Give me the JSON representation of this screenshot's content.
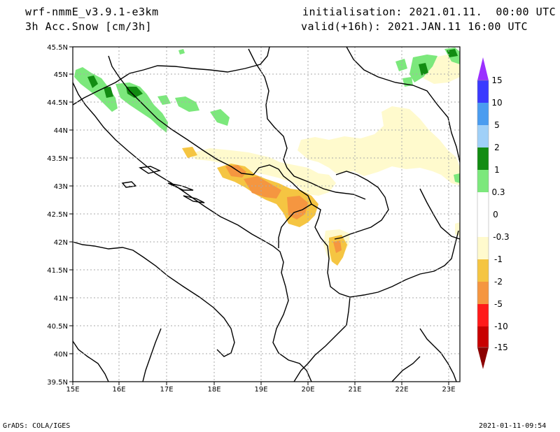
{
  "header": {
    "model": "wrf-nmmE_v3.9.1-e3km",
    "variable": "3h Acc.Snow [cm/3h]",
    "init": "initialisation: 2021.01.11.  00:00 UTC",
    "valid": "valid(+16h): 2021.JAN.11 16:00 UTC"
  },
  "axes": {
    "lon_labels": [
      "15E",
      "16E",
      "17E",
      "18E",
      "19E",
      "20E",
      "21E",
      "22E",
      "23E"
    ],
    "lat_labels": [
      "45.5N",
      "45N",
      "44.5N",
      "44N",
      "43.5N",
      "43N",
      "42.5N",
      "42N",
      "41.5N",
      "41N",
      "40.5N",
      "40N",
      "39.5N"
    ]
  },
  "colorbar": {
    "labels": [
      "15",
      "10",
      "5",
      "2",
      "1",
      "0.3",
      "0",
      "-0.3",
      "-1",
      "-2",
      "-5",
      "-10",
      "-15"
    ],
    "colors": [
      "#9b30ff",
      "#3a3aff",
      "#4a9cf0",
      "#a0d0f8",
      "#128c12",
      "#3cb43c",
      "#7ce87c",
      "#ffffff",
      "#fffacd",
      "#f5c542",
      "#f59640",
      "#ff1a1a",
      "#c80000",
      "#8b0000"
    ]
  },
  "footer": {
    "left": "GrADS: COLA/IGES",
    "right": "2021-01-11-09:54"
  }
}
